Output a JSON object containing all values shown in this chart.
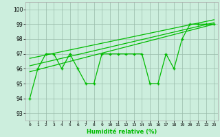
{
  "xlabel": "Humidité relative (%)",
  "bg_color": "#cceedd",
  "grid_color": "#aaccaa",
  "line_color": "#00bb00",
  "xlim": [
    -0.5,
    23.5
  ],
  "ylim": [
    92.5,
    100.5
  ],
  "yticks": [
    93,
    94,
    95,
    96,
    97,
    98,
    99,
    100
  ],
  "xticks": [
    0,
    1,
    2,
    3,
    4,
    5,
    6,
    7,
    8,
    9,
    10,
    11,
    12,
    13,
    14,
    15,
    16,
    17,
    18,
    19,
    20,
    21,
    22,
    23
  ],
  "jagged": [
    94,
    96,
    97,
    97,
    96,
    97,
    96,
    95,
    95,
    97,
    97,
    97,
    97,
    97,
    97,
    95,
    95,
    97,
    96,
    98,
    99,
    99,
    99,
    99
  ],
  "line1_x": [
    0,
    23
  ],
  "line1_y": [
    96.2,
    99.1
  ],
  "line2_x": [
    0,
    23
  ],
  "line2_y": [
    96.7,
    99.3
  ],
  "line3_x": [
    0,
    23
  ],
  "line3_y": [
    95.8,
    99.0
  ]
}
